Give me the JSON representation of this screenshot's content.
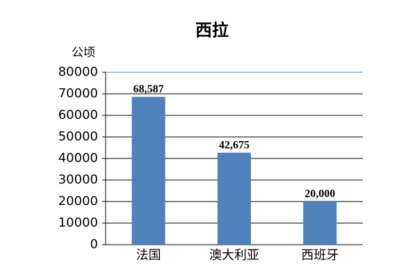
{
  "chart_data": {
    "type": "bar",
    "title": "西拉",
    "y_label": "公顷",
    "categories": [
      "法国",
      "澳大利亚",
      "西班牙"
    ],
    "values": [
      68587,
      42675,
      20000
    ],
    "value_labels": [
      "68,587",
      "42,675",
      "20,000"
    ],
    "color": "#4f81bd",
    "ylim": [
      0,
      80000
    ],
    "yticks": [
      0,
      10000,
      20000,
      30000,
      40000,
      50000,
      60000,
      70000,
      80000
    ],
    "grid": true
  }
}
